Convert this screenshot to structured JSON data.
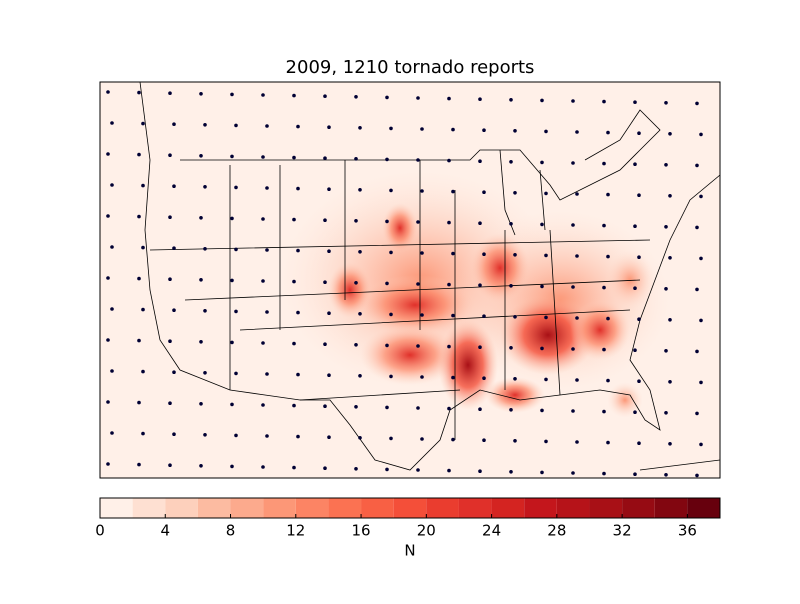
{
  "chart_data": {
    "type": "contourf",
    "title": "2009, 1210 tornado reports",
    "colorbar": {
      "label": "N",
      "levels": [
        0,
        2,
        4,
        6,
        8,
        10,
        12,
        14,
        16,
        18,
        20,
        22,
        24,
        26,
        28,
        30,
        32,
        34,
        36,
        38
      ],
      "colors": [
        "#fff0e8",
        "#fee0d2",
        "#fdd0bc",
        "#fcbba1",
        "#fcaa8d",
        "#fc9777",
        "#fc8464",
        "#fb7252",
        "#f86044",
        "#f44f39",
        "#ea3d2f",
        "#e0302a",
        "#d42421",
        "#c4161c",
        "#b61319",
        "#a81016",
        "#960b13",
        "#820610",
        "#67000d"
      ],
      "ticks": [
        0,
        4,
        8,
        12,
        16,
        20,
        24,
        28,
        32,
        36
      ]
    }
  }
}
